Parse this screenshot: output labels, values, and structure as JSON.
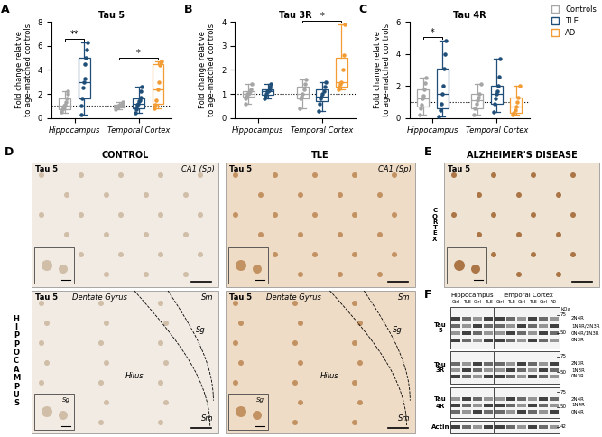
{
  "chart_data": [
    {
      "type": "box",
      "panel_label": "A",
      "title": "Tau 5",
      "y_label": "Fold change relative\nto age-matched controls",
      "categories": [
        "Hippocampus",
        "Temporal Cortex"
      ],
      "series": [
        {
          "name": "Controls",
          "color": "#a6a6a6",
          "values": [
            {
              "whislo": 0.4,
              "q1": 0.7,
              "med": 1.0,
              "q3": 1.6,
              "whishi": 2.2,
              "points": [
                0.5,
                0.7,
                0.8,
                0.9,
                1.0,
                1.1,
                1.3,
                1.6,
                2.0,
                2.2
              ]
            },
            {
              "whislo": 0.7,
              "q1": 0.9,
              "med": 1.0,
              "q3": 1.1,
              "whishi": 1.3,
              "points": [
                0.7,
                0.85,
                0.9,
                1.0,
                1.0,
                1.05,
                1.1,
                1.2,
                1.3
              ]
            }
          ]
        },
        {
          "name": "TLE",
          "color": "#1f4e79",
          "values": [
            {
              "whislo": 0.3,
              "q1": 1.6,
              "med": 3.0,
              "q3": 5.0,
              "whishi": 6.3,
              "points": [
                0.3,
                1.0,
                1.6,
                2.5,
                3.0,
                3.3,
                4.5,
                5.0,
                5.7,
                6.3
              ]
            },
            {
              "whislo": 0.4,
              "q1": 0.8,
              "med": 1.2,
              "q3": 1.6,
              "whishi": 2.6,
              "points": [
                0.4,
                0.7,
                0.9,
                1.1,
                1.2,
                1.4,
                1.5,
                1.7,
                2.2,
                2.6
              ]
            }
          ]
        },
        {
          "name": "AD",
          "color": "#f39c34",
          "values": [
            null,
            {
              "whislo": 0.8,
              "q1": 1.2,
              "med": 2.4,
              "q3": 4.5,
              "whishi": 4.7,
              "points": [
                0.8,
                1.1,
                1.5,
                2.4,
                3.0,
                4.4,
                4.6,
                4.7
              ]
            }
          ]
        }
      ],
      "ylim": [
        0,
        8
      ],
      "yticks": [
        0,
        2,
        4,
        6,
        8
      ],
      "reference_line": 1,
      "significance": [
        {
          "category": "Hippocampus",
          "between": [
            "Controls",
            "TLE"
          ],
          "label": "**"
        },
        {
          "category": "Temporal Cortex",
          "between": [
            "Controls",
            "AD"
          ],
          "label": "*"
        }
      ]
    },
    {
      "type": "box",
      "panel_label": "B",
      "title": "Tau 3R",
      "y_label": "Fold change relative\nto age-matched controls",
      "categories": [
        "Hippocampus",
        "Temporal Cortex"
      ],
      "series": [
        {
          "name": "Controls",
          "color": "#a6a6a6",
          "values": [
            {
              "whislo": 0.6,
              "q1": 0.9,
              "med": 1.0,
              "q3": 1.1,
              "whishi": 1.4,
              "points": [
                0.6,
                0.8,
                0.9,
                1.0,
                1.0,
                1.05,
                1.1,
                1.2,
                1.4
              ]
            },
            {
              "whislo": 0.4,
              "q1": 0.8,
              "med": 1.0,
              "q3": 1.3,
              "whishi": 1.6,
              "points": [
                0.4,
                0.8,
                0.9,
                1.0,
                1.2,
                1.4,
                1.6
              ]
            }
          ]
        },
        {
          "name": "TLE",
          "color": "#1f4e79",
          "values": [
            {
              "whislo": 0.8,
              "q1": 0.95,
              "med": 1.1,
              "q3": 1.2,
              "whishi": 1.4,
              "points": [
                0.8,
                0.9,
                1.0,
                1.1,
                1.1,
                1.15,
                1.2,
                1.3,
                1.4
              ]
            },
            {
              "whislo": 0.3,
              "q1": 0.7,
              "med": 0.9,
              "q3": 1.2,
              "whishi": 1.5,
              "points": [
                0.3,
                0.6,
                0.8,
                0.9,
                1.0,
                1.1,
                1.3,
                1.5
              ]
            }
          ]
        },
        {
          "name": "AD",
          "color": "#f39c34",
          "values": [
            null,
            {
              "whislo": 1.2,
              "q1": 1.3,
              "med": 1.5,
              "q3": 2.5,
              "whishi": 3.9,
              "points": [
                1.2,
                1.3,
                1.4,
                1.5,
                2.0,
                2.6,
                3.9
              ]
            }
          ]
        }
      ],
      "ylim": [
        0,
        4
      ],
      "yticks": [
        0,
        1,
        2,
        3,
        4
      ],
      "reference_line": 1,
      "significance": [
        {
          "category": "Temporal Cortex",
          "between": [
            "Controls",
            "AD"
          ],
          "label": "*"
        }
      ]
    },
    {
      "type": "box",
      "panel_label": "C",
      "title": "Tau 4R",
      "y_label": "Fold change relative\nto age-matched controls",
      "categories": [
        "Hippocampus",
        "Temporal Cortex"
      ],
      "series": [
        {
          "name": "Controls",
          "color": "#a6a6a6",
          "values": [
            {
              "whislo": 0.2,
              "q1": 0.7,
              "med": 1.2,
              "q3": 1.8,
              "whishi": 2.5,
              "points": [
                0.2,
                0.6,
                0.8,
                1.2,
                1.4,
                1.8,
                2.2,
                2.5
              ]
            },
            {
              "whislo": 0.2,
              "q1": 0.6,
              "med": 1.1,
              "q3": 1.5,
              "whishi": 2.1,
              "points": [
                0.2,
                0.6,
                0.9,
                1.1,
                1.3,
                1.5,
                2.1
              ]
            }
          ]
        },
        {
          "name": "TLE",
          "color": "#1f4e79",
          "values": [
            {
              "whislo": 0.1,
              "q1": 0.6,
              "med": 1.5,
              "q3": 3.1,
              "whishi": 4.8,
              "points": [
                0.1,
                0.5,
                0.9,
                1.5,
                2.0,
                3.1,
                4.0,
                4.8
              ]
            },
            {
              "whislo": 0.4,
              "q1": 0.9,
              "med": 1.5,
              "q3": 2.0,
              "whishi": 3.7,
              "points": [
                0.4,
                0.9,
                1.2,
                1.5,
                1.7,
                2.0,
                2.6,
                3.7
              ]
            }
          ]
        },
        {
          "name": "AD",
          "color": "#f39c34",
          "values": [
            null,
            {
              "whislo": 0.2,
              "q1": 0.3,
              "med": 0.7,
              "q3": 1.3,
              "whishi": 2.0,
              "points": [
                0.2,
                0.3,
                0.5,
                0.7,
                1.0,
                1.3,
                2.0
              ]
            }
          ]
        }
      ],
      "ylim": [
        0,
        6
      ],
      "yticks": [
        0,
        2,
        4,
        6
      ],
      "reference_line": 1,
      "significance": [
        {
          "category": "Hippocampus",
          "between": [
            "Controls",
            "TLE"
          ],
          "label": "*"
        }
      ],
      "legend": "upper right"
    }
  ],
  "micrographs": {
    "label": "D",
    "row_title": "HIPPOCAMPUS",
    "columns": [
      {
        "title": "CONTROL",
        "panels": [
          {
            "stain": "Tau 5",
            "region": "CA1 (Sp)"
          },
          {
            "stain": "Tau 5",
            "region": "Dentate Gyrus",
            "layers": [
              "Sm",
              "Sg",
              "Hilus",
              "Sm"
            ],
            "inset": "Sg"
          }
        ]
      },
      {
        "title": "TLE",
        "panels": [
          {
            "stain": "Tau 5",
            "region": "CA1 (Sp)"
          },
          {
            "stain": "Tau 5",
            "region": "Dentate Gyrus",
            "layers": [
              "Sm",
              "Sg",
              "Hilus",
              "Sm"
            ],
            "inset": "Sg"
          }
        ]
      }
    ]
  },
  "alzheimer": {
    "label": "E",
    "title": "ALZHEIMER'S DISEASE",
    "row_title": "CORTEX",
    "stain": "Tau 5"
  },
  "western_blot": {
    "label": "F",
    "groups": [
      {
        "title": "Hippocampus",
        "lanes": [
          "Ctrl",
          "TLE",
          "Ctrl",
          "TLE"
        ]
      },
      {
        "title": "Temporal Cortex",
        "lanes": [
          "Ctrl",
          "TLE",
          "Ctrl",
          "TLE",
          "Ctrl",
          "AD"
        ]
      }
    ],
    "kda_label": "kDa",
    "rows": [
      {
        "name": "Tau 5",
        "markers": [
          75,
          50
        ],
        "bands": [
          "2N4R",
          "1N4R/2N3R",
          "0N4R/1N3R",
          "0N3R"
        ]
      },
      {
        "name": "Tau 3R",
        "markers": [
          75,
          50
        ],
        "bands": [
          "2N3R",
          "1N3R",
          "0N3R"
        ]
      },
      {
        "name": "Tau 4R",
        "markers": [
          75,
          50
        ],
        "bands": [
          "2N4R",
          "1N4R",
          "0N4R"
        ]
      },
      {
        "name": "Actin",
        "markers": [
          42
        ],
        "bands": []
      }
    ]
  }
}
